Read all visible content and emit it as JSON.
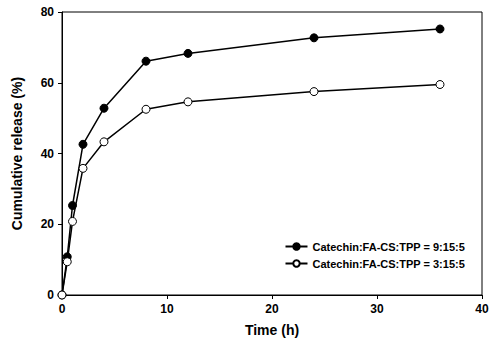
{
  "chart_data": {
    "type": "line",
    "x_label": "Time (h)",
    "y_label": "Cumulative release (%)",
    "x": [
      0,
      0.5,
      1,
      2,
      4,
      8,
      12,
      24,
      36
    ],
    "series": [
      {
        "name": "Catechin:FA-CS:TPP = 9:15:5",
        "color": "#000000",
        "marker": "filled_circle",
        "line_style": "solid",
        "values": [
          0,
          10.8,
          25.3,
          42.6,
          52.8,
          66.1,
          68.3,
          72.7,
          75.2
        ]
      },
      {
        "name": "Catechin:FA-CS:TPP = 3:15:5",
        "color": "#000000",
        "marker": "open_circle",
        "line_style": "solid",
        "values": [
          0,
          9.4,
          20.8,
          35.8,
          43.3,
          52.5,
          54.6,
          57.5,
          59.5
        ]
      }
    ],
    "xlim": [
      0,
      40
    ],
    "xticks": [
      0,
      10,
      20,
      30,
      40
    ],
    "ylim": [
      0,
      80
    ],
    "yticks": [
      0,
      20,
      40,
      60,
      80
    ],
    "grid": false,
    "legend": "lower right"
  }
}
